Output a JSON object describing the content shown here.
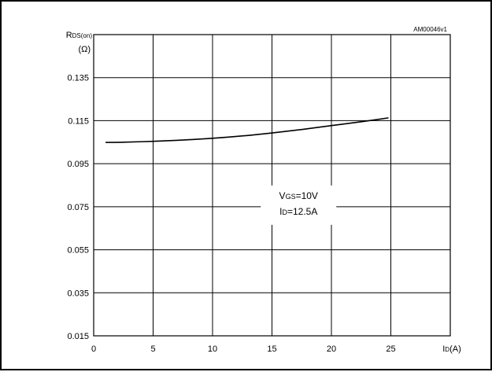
{
  "chart_data": {
    "type": "line",
    "reference_code": "AM00046v1",
    "ylabel_main": "R",
    "ylabel_sub": "DS(on)",
    "yunit": "(Ω)",
    "xlabel_main": "I",
    "xlabel_sub": "D",
    "xunit": "(A)",
    "xlim": [
      0,
      30
    ],
    "ylim": [
      0.015,
      0.155
    ],
    "x_ticks": [
      0,
      5,
      10,
      15,
      20,
      25
    ],
    "y_ticks": [
      0.015,
      0.035,
      0.055,
      0.075,
      0.095,
      0.115,
      0.135
    ],
    "x_tick_labels": [
      "0",
      "5",
      "10",
      "15",
      "20",
      "25"
    ],
    "y_tick_labels": [
      "0.015",
      "0.035",
      "0.055",
      "0.075",
      "0.095",
      "0.115",
      "0.135"
    ],
    "grid": true,
    "series": [
      {
        "x": [
          1,
          2.5,
          5,
          7.5,
          10,
          12.5,
          15,
          17.5,
          20,
          22.5,
          24.8
        ],
        "y": [
          0.1049,
          0.105,
          0.1054,
          0.106,
          0.1068,
          0.1079,
          0.1093,
          0.1109,
          0.1127,
          0.1145,
          0.1163
        ]
      }
    ],
    "annotation": {
      "line1_main": "V",
      "line1_sub": "GS",
      "line1_rest": "=10V",
      "line2_main": "I",
      "line2_sub": "D",
      "line2_rest": "=12.5A"
    }
  }
}
